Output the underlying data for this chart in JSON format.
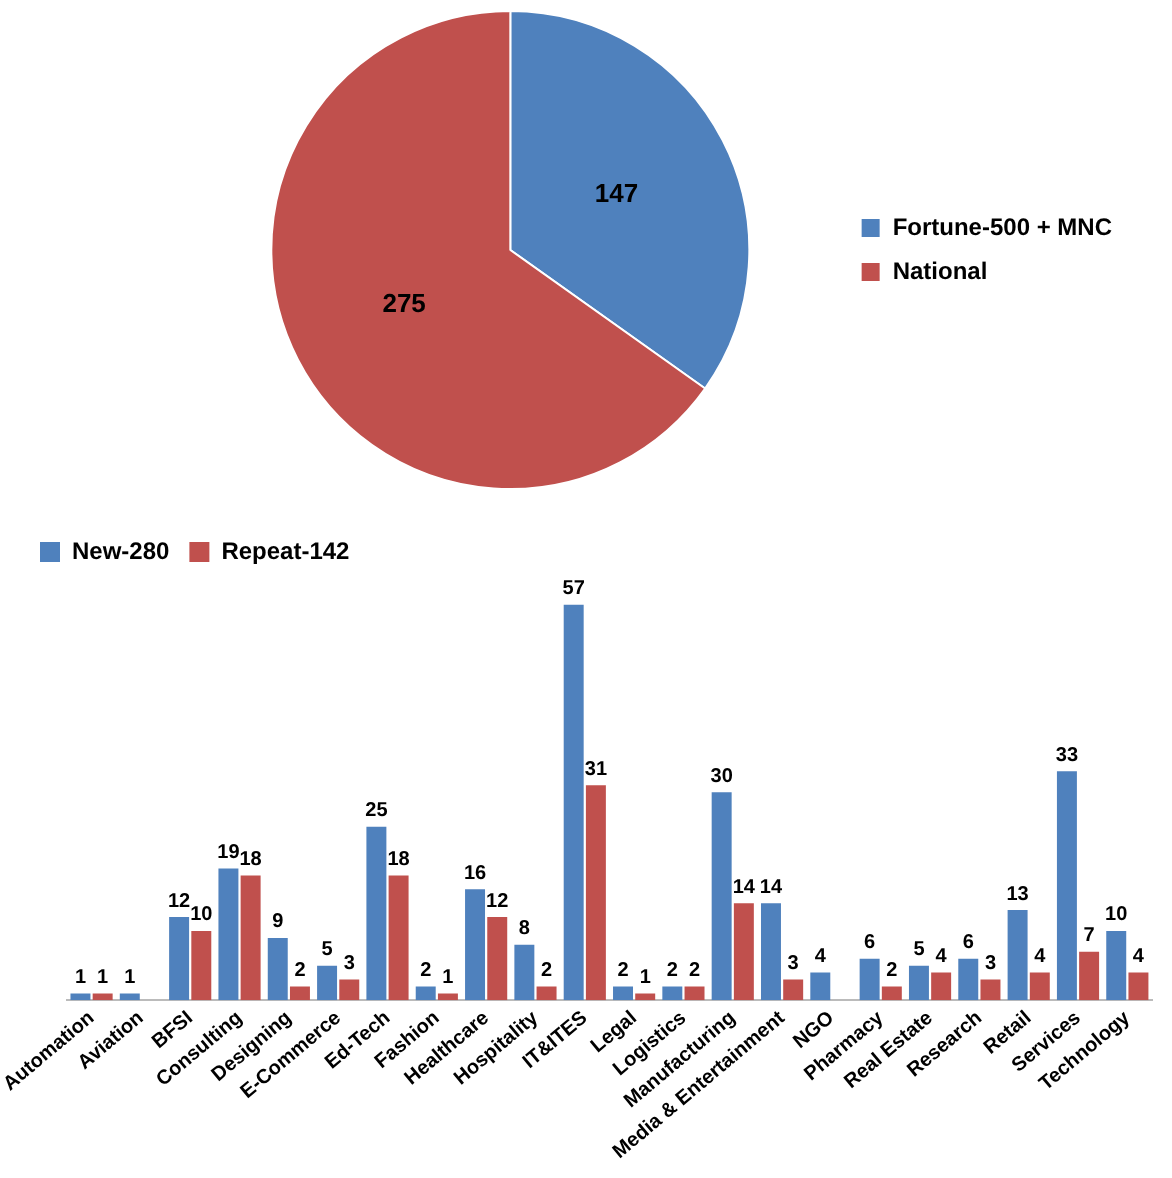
{
  "chart_data": [
    {
      "type": "pie",
      "categories": [
        "Fortune-500 + MNC",
        "National"
      ],
      "values": [
        147,
        275
      ],
      "colors": [
        "#4f81bd",
        "#c0504d"
      ],
      "data_labels": true,
      "legend": "right"
    },
    {
      "type": "bar",
      "categories": [
        "Automation",
        "Aviation",
        "BFSI",
        "Consulting",
        "Designing",
        "E-Commerce",
        "Ed-Tech",
        "Fashion",
        "Healthcare",
        "Hospitality",
        "IT&ITES",
        "Legal",
        "Logistics",
        "Manufacturing",
        "Media & Entertainment",
        "NGO",
        "Pharmacy",
        "Real Estate",
        "Research",
        "Retail",
        "Services",
        "Technology"
      ],
      "series": [
        {
          "name": "New-280",
          "color": "#4f81bd",
          "values": [
            1,
            1,
            12,
            19,
            9,
            5,
            25,
            2,
            16,
            8,
            57,
            2,
            2,
            30,
            14,
            4,
            6,
            5,
            6,
            13,
            33,
            10
          ]
        },
        {
          "name": "Repeat-142",
          "color": "#c0504d",
          "values": [
            1,
            null,
            10,
            18,
            2,
            3,
            18,
            1,
            12,
            2,
            31,
            1,
            2,
            14,
            3,
            null,
            2,
            4,
            3,
            4,
            7,
            4
          ]
        }
      ],
      "data_labels": true,
      "legend": "top left",
      "grid": false,
      "tick_labels": "x"
    }
  ]
}
